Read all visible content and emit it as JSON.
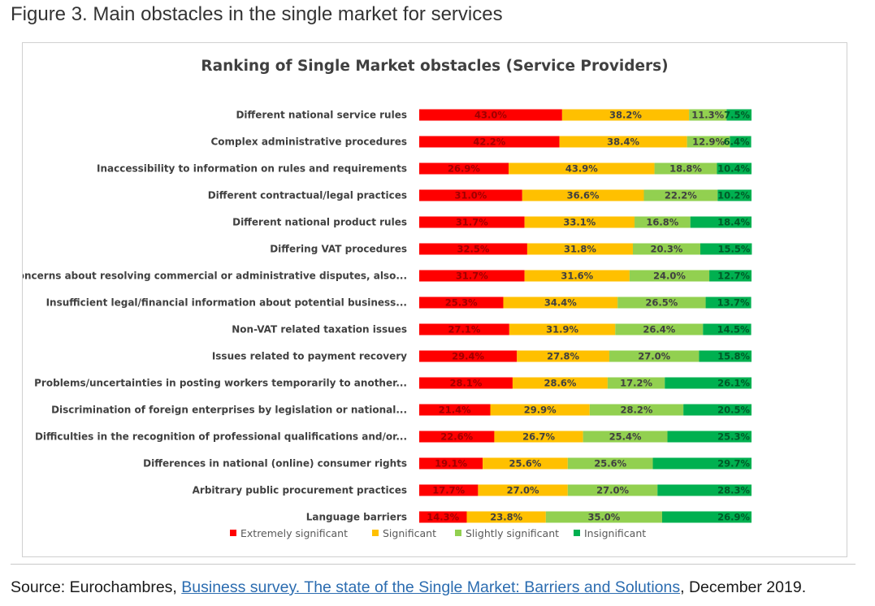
{
  "figure_title": "Figure 3. Main obstacles in the single market for services",
  "source": {
    "prefix": "Source: Eurochambres, ",
    "link_text": "Business survey. The state of the Single Market: Barriers and Solutions",
    "suffix": ", December 2019."
  },
  "chart_data": {
    "type": "bar",
    "orientation": "horizontal",
    "stacked": true,
    "title": "Ranking of Single Market obstacles (Service Providers)",
    "xlabel": "",
    "ylabel": "",
    "xlim": [
      0,
      100
    ],
    "grid": false,
    "legend_position": "bottom",
    "data_labels": true,
    "categories": [
      "Different national service rules",
      "Complex administrative procedures",
      "Inaccessibility to information on rules and requirements",
      "Different contractual/legal practices",
      "Different national product rules",
      "Differing VAT procedures",
      "Concerns about resolving commercial or administrative disputes, also...",
      "Insufficient legal/financial information about potential business...",
      "Non-VAT related taxation issues",
      "Issues related to payment recovery",
      "Problems/uncertainties in posting workers temporarily to another...",
      "Discrimination of foreign enterprises by legislation or national...",
      "Difficulties in the recognition of professional qualifications and/or...",
      "Differences in national (online) consumer rights",
      "Arbitrary public procurement practices",
      "Language barriers"
    ],
    "series": [
      {
        "name": "Extremely significant",
        "color": "#ff0000",
        "label_color": "#a00000",
        "values": [
          43.0,
          42.2,
          26.9,
          31.0,
          31.7,
          32.5,
          31.7,
          25.3,
          27.1,
          29.4,
          28.1,
          21.4,
          22.6,
          19.1,
          17.7,
          14.3
        ]
      },
      {
        "name": "Significant",
        "color": "#ffc000",
        "label_color": "#404040",
        "values": [
          38.2,
          38.4,
          43.9,
          36.6,
          33.1,
          31.8,
          31.6,
          34.4,
          31.9,
          27.8,
          28.6,
          29.9,
          26.7,
          25.6,
          27.0,
          23.8
        ]
      },
      {
        "name": "Slightly significant",
        "color": "#92d050",
        "label_color": "#404040",
        "values": [
          11.3,
          12.9,
          18.8,
          22.2,
          16.8,
          20.3,
          24.0,
          26.5,
          26.4,
          27.0,
          17.2,
          28.2,
          25.4,
          25.6,
          27.0,
          35.0
        ]
      },
      {
        "name": "Insignificant",
        "color": "#00b050",
        "label_color": "#005a28",
        "values": [
          7.5,
          6.4,
          10.4,
          10.2,
          18.4,
          15.5,
          12.7,
          13.7,
          14.5,
          15.8,
          26.1,
          20.5,
          25.3,
          29.7,
          28.3,
          26.9
        ]
      }
    ]
  }
}
